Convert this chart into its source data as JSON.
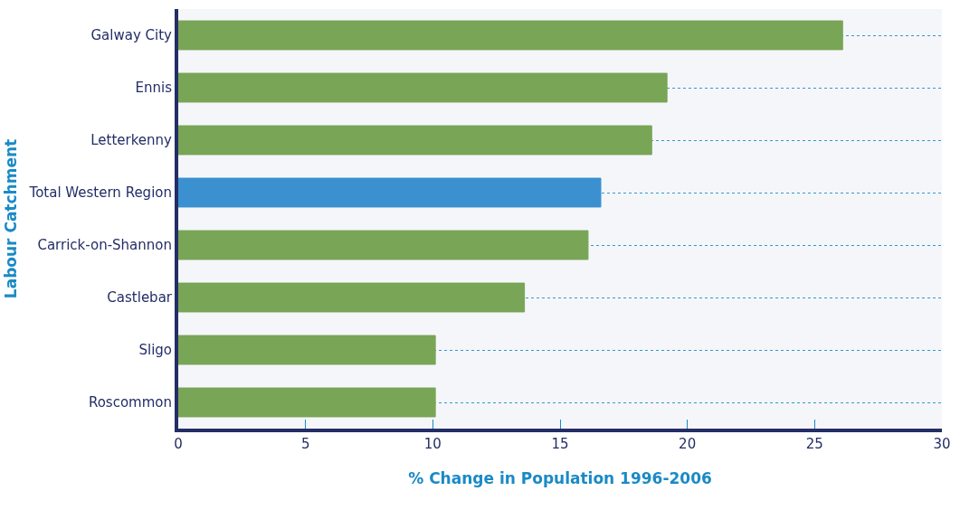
{
  "chart_data": {
    "type": "bar",
    "orientation": "horizontal",
    "xlabel": "% Change in Population 1996-2006",
    "ylabel": "Labour Catchment",
    "categories": [
      "Galway City",
      "Ennis",
      "Letterkenny",
      "Total Western Region",
      "Carrick-on-Shannon",
      "Castlebar",
      "Sligo",
      "Roscommon"
    ],
    "values": [
      26.1,
      19.2,
      18.6,
      16.6,
      16.1,
      13.6,
      10.1,
      10.1
    ],
    "colors": [
      "#79a556",
      "#79a556",
      "#79a556",
      "#3b90d0",
      "#79a556",
      "#79a556",
      "#79a556",
      "#79a556"
    ],
    "xlim": [
      0,
      30
    ],
    "xticks": [
      0,
      5,
      10,
      15,
      20,
      25,
      30
    ],
    "grid": "y"
  }
}
